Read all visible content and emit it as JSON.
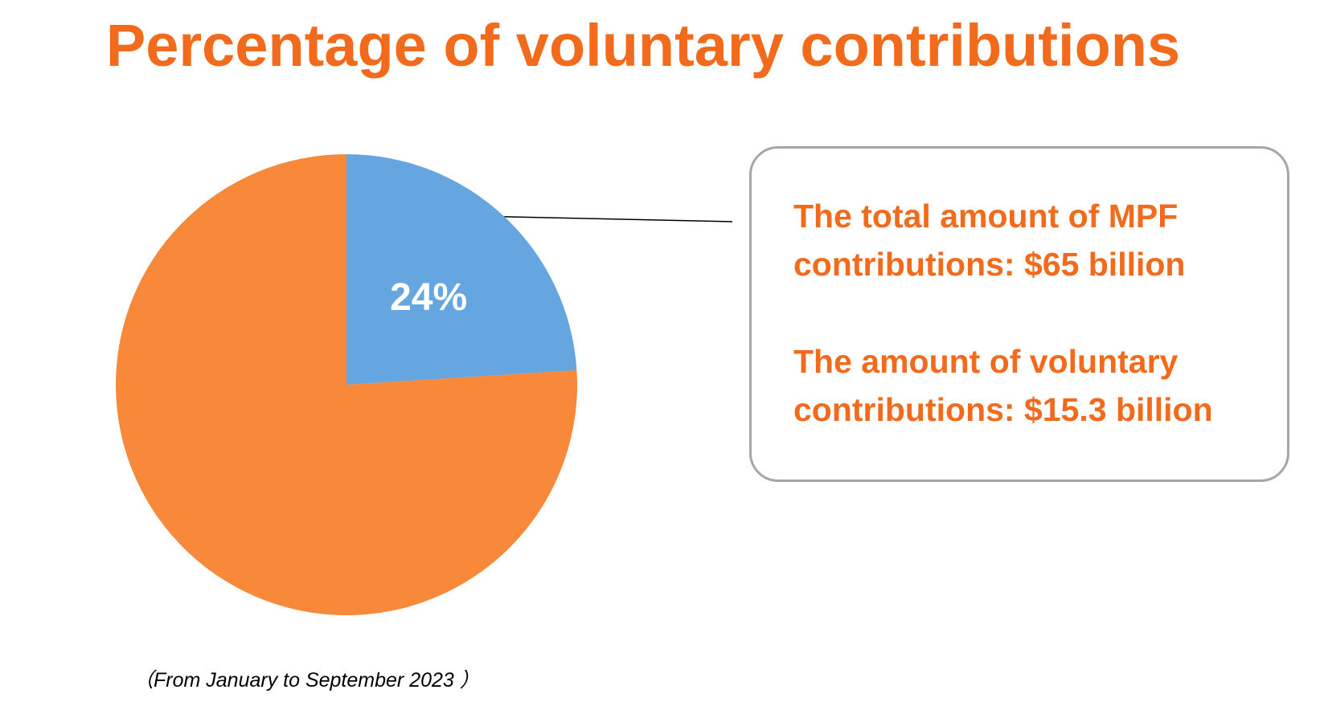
{
  "title": "Percentage of voluntary contributions",
  "period_note": "（From January to September 2023 ）",
  "info_box": {
    "total_line_1": "The total amount of MPF",
    "total_line_2": "contributions: $65 billion",
    "voluntary_line_1": "The amount of voluntary",
    "voluntary_line_2": "contributions: $15.3 billion"
  },
  "colors": {
    "accent_text": "#f26b1d",
    "voluntary_slice": "#65a5e0",
    "other_slice": "#f8883a",
    "box_border": "#a6a6a6"
  },
  "chart_data": {
    "type": "pie",
    "title": "Percentage of voluntary contributions",
    "slices": [
      {
        "label": "24%",
        "value": 24,
        "color": "#65a5e0"
      },
      {
        "label": "",
        "value": 76,
        "color": "#f8883a"
      }
    ],
    "legend": "none"
  }
}
